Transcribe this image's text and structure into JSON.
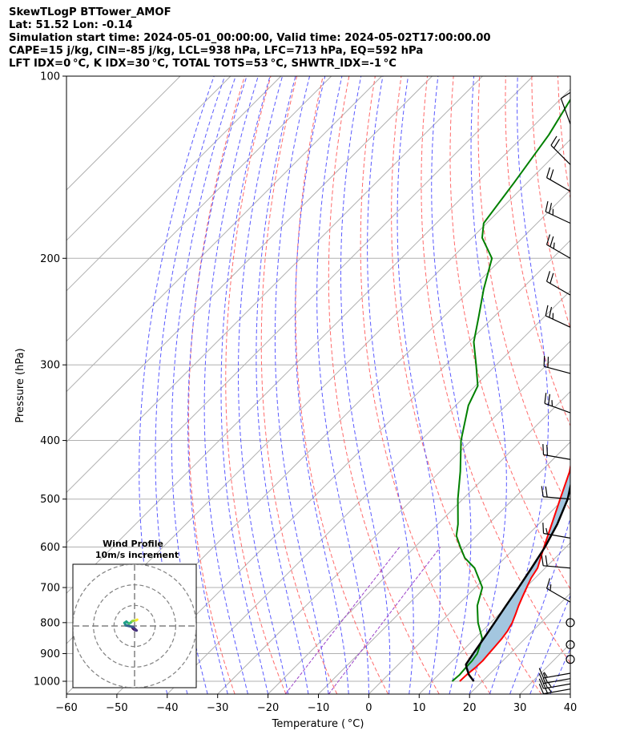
{
  "header": {
    "line1": "SkewTLogP BTTower_AMOF",
    "line2": "Lat: 51.52   Lon: -0.14",
    "line3": "Simulation start time: 2024-05-01_00:00:00, Valid time: 2024-05-02T17:00:00.00",
    "line4": "CAPE=15 j/kg, CIN=-85 j/kg, LCL=938 hPa, LFC=713 hPa, EQ=592 hPa",
    "line5": "LFT IDX=0 °C, K IDX=30 °C, TOTAL TOTS=53 °C, SHWTR_IDX=-1 °C"
  },
  "chart_data": {
    "type": "line",
    "xlabel": "Temperature ( °C)",
    "ylabel": "Pressure (hPa)",
    "xlim": [
      -60,
      40
    ],
    "ylim": [
      1050,
      100
    ],
    "y_scale": "log",
    "x_ticks": [
      "−60",
      "−50",
      "−40",
      "−30",
      "−20",
      "−10",
      "0",
      "10",
      "20",
      "30",
      "40"
    ],
    "y_ticks": [
      "1000",
      "900",
      "800",
      "700",
      "600",
      "500",
      "400",
      "300",
      "200",
      "100"
    ],
    "grid": true,
    "colors": {
      "temperature": "#ff0000",
      "dewpoint": "#008000",
      "parcel": "#000000",
      "cape_fill": "#a3c6df",
      "dry_adiabats": "#ff6a6a",
      "moist_adiabats": "#5a5aff",
      "mixing_ratio": "#9a40c8",
      "isotherms": "#b0b0b0"
    },
    "temperature_profile": [
      {
        "p": 1000,
        "t": 15.5
      },
      {
        "p": 975,
        "t": 15.6
      },
      {
        "p": 950,
        "t": 15.9
      },
      {
        "p": 925,
        "t": 16.0
      },
      {
        "p": 900,
        "t": 15.8
      },
      {
        "p": 875,
        "t": 15.6
      },
      {
        "p": 850,
        "t": 15.4
      },
      {
        "p": 825,
        "t": 15.0
      },
      {
        "p": 800,
        "t": 14.3
      },
      {
        "p": 775,
        "t": 13.3
      },
      {
        "p": 750,
        "t": 12.2
      },
      {
        "p": 725,
        "t": 11.2
      },
      {
        "p": 700,
        "t": 10.2
      },
      {
        "p": 675,
        "t": 9.2
      },
      {
        "p": 650,
        "t": 8.5
      },
      {
        "p": 600,
        "t": 5.6
      },
      {
        "p": 550,
        "t": 2.6
      },
      {
        "p": 500,
        "t": -0.7
      },
      {
        "p": 450,
        "t": -4.3
      },
      {
        "p": 400,
        "t": -9.4
      },
      {
        "p": 350,
        "t": -15.8
      },
      {
        "p": 300,
        "t": -23.2
      },
      {
        "p": 275,
        "t": -27.9
      },
      {
        "p": 250,
        "t": -32.4
      },
      {
        "p": 240,
        "t": -34.8
      },
      {
        "p": 225,
        "t": -33.9
      },
      {
        "p": 200,
        "t": -36.3
      },
      {
        "p": 175,
        "t": -39.4
      },
      {
        "p": 150,
        "t": -43.2
      },
      {
        "p": 125,
        "t": -46.4
      },
      {
        "p": 110,
        "t": -48.6
      },
      {
        "p": 100,
        "t": -50.6
      }
    ],
    "dewpoint_profile": [
      {
        "p": 1000,
        "t": 14.0
      },
      {
        "p": 975,
        "t": 14.2
      },
      {
        "p": 950,
        "t": 14.0
      },
      {
        "p": 925,
        "t": 13.9
      },
      {
        "p": 900,
        "t": 13.5
      },
      {
        "p": 850,
        "t": 11.5
      },
      {
        "p": 800,
        "t": 7.5
      },
      {
        "p": 750,
        "t": 4.0
      },
      {
        "p": 700,
        "t": 1.4
      },
      {
        "p": 650,
        "t": -4.0
      },
      {
        "p": 625,
        "t": -8.0
      },
      {
        "p": 600,
        "t": -11.0
      },
      {
        "p": 575,
        "t": -14.0
      },
      {
        "p": 550,
        "t": -16.0
      },
      {
        "p": 500,
        "t": -21.0
      },
      {
        "p": 450,
        "t": -26.0
      },
      {
        "p": 400,
        "t": -32.0
      },
      {
        "p": 350,
        "t": -37.5
      },
      {
        "p": 325,
        "t": -39.5
      },
      {
        "p": 300,
        "t": -44.0
      },
      {
        "p": 275,
        "t": -49.0
      },
      {
        "p": 250,
        "t": -53.0
      },
      {
        "p": 225,
        "t": -57.5
      },
      {
        "p": 200,
        "t": -62.0
      },
      {
        "p": 185,
        "t": -68.0
      },
      {
        "p": 175,
        "t": -70.6
      },
      {
        "p": 150,
        "t": -72.6
      },
      {
        "p": 125,
        "t": -75.2
      },
      {
        "p": 100,
        "t": -79.7
      }
    ],
    "parcel_profile": [
      {
        "p": 1000,
        "t": 18.3
      },
      {
        "p": 975,
        "t": 16.0
      },
      {
        "p": 950,
        "t": 14.2
      },
      {
        "p": 938,
        "t": 13.4
      },
      {
        "p": 900,
        "t": 12.7
      },
      {
        "p": 850,
        "t": 11.8
      },
      {
        "p": 800,
        "t": 10.8
      },
      {
        "p": 750,
        "t": 9.7
      },
      {
        "p": 700,
        "t": 8.6
      },
      {
        "p": 650,
        "t": 7.3
      },
      {
        "p": 600,
        "t": 5.8
      },
      {
        "p": 550,
        "t": 3.7
      },
      {
        "p": 500,
        "t": 0.8
      },
      {
        "p": 450,
        "t": -3.5
      },
      {
        "p": 400,
        "t": -8.6
      },
      {
        "p": 350,
        "t": -14.9
      },
      {
        "p": 300,
        "t": -22.0
      },
      {
        "p": 250,
        "t": -31.0
      },
      {
        "p": 200,
        "t": -41.6
      },
      {
        "p": 175,
        "t": -48.0
      },
      {
        "p": 150,
        "t": -55.4
      },
      {
        "p": 125,
        "t": -63.7
      },
      {
        "p": 100,
        "t": -72.9
      }
    ],
    "wind_barbs": [
      {
        "p": 1030,
        "speed_kt": 25,
        "dir": 260
      },
      {
        "p": 1010,
        "speed_kt": 25,
        "dir": 260
      },
      {
        "p": 990,
        "speed_kt": 20,
        "dir": 260
      },
      {
        "p": 970,
        "speed_kt": 15,
        "dir": 260
      },
      {
        "p": 920,
        "speed_kt": 0,
        "dir": 0
      },
      {
        "p": 870,
        "speed_kt": 0,
        "dir": 0
      },
      {
        "p": 800,
        "speed_kt": 0,
        "dir": 0
      },
      {
        "p": 740,
        "speed_kt": 15,
        "dir": 300
      },
      {
        "p": 650,
        "speed_kt": 20,
        "dir": 275
      },
      {
        "p": 580,
        "speed_kt": 15,
        "dir": 280
      },
      {
        "p": 500,
        "speed_kt": 20,
        "dir": 275
      },
      {
        "p": 430,
        "speed_kt": 20,
        "dir": 280
      },
      {
        "p": 360,
        "speed_kt": 25,
        "dir": 290
      },
      {
        "p": 310,
        "speed_kt": 20,
        "dir": 285
      },
      {
        "p": 260,
        "speed_kt": 25,
        "dir": 295
      },
      {
        "p": 230,
        "speed_kt": 20,
        "dir": 300
      },
      {
        "p": 200,
        "speed_kt": 25,
        "dir": 300
      },
      {
        "p": 175,
        "speed_kt": 25,
        "dir": 295
      },
      {
        "p": 155,
        "speed_kt": 20,
        "dir": 300
      },
      {
        "p": 140,
        "speed_kt": 20,
        "dir": 315
      },
      {
        "p": 120,
        "speed_kt": 10,
        "dir": 340
      }
    ],
    "hodograph": {
      "title_line1": "Wind Profile",
      "title_line2": "10m/s increment",
      "ring_step_ms": 10,
      "points": [
        {
          "u": -1,
          "v": -1
        },
        {
          "u": -0.5,
          "v": -1.5
        },
        {
          "u": 0.2,
          "v": -2.0
        },
        {
          "u": 1.0,
          "v": -2.2
        },
        {
          "u": -0.8,
          "v": -0.5
        },
        {
          "u": -2.8,
          "v": 0.0
        },
        {
          "u": -4.3,
          "v": 0.3
        },
        {
          "u": -4.9,
          "v": 1.5
        },
        {
          "u": -4.0,
          "v": 2.1
        },
        {
          "u": -2.7,
          "v": 1.1
        },
        {
          "u": -1.8,
          "v": 1.7
        },
        {
          "u": -1.1,
          "v": 2.4
        },
        {
          "u": -0.2,
          "v": 2.6
        },
        {
          "u": 0.8,
          "v": 2.8
        },
        {
          "u": 1.3,
          "v": 3.1
        }
      ]
    }
  }
}
